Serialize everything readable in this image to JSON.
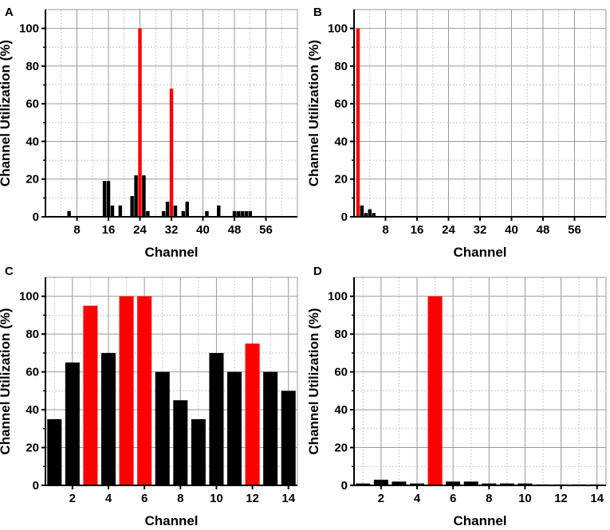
{
  "colors": {
    "normal_bar": "#000000",
    "highlight_bar": "#ff0000",
    "grid_major": "#999999",
    "grid_minor": "#c8c8c8",
    "frame": "#000000"
  },
  "chart_data": [
    {
      "panel": "A",
      "type": "bar",
      "xlabel": "Channel",
      "ylabel": "Channel Utilization (%)",
      "xlim": [
        0,
        64
      ],
      "ylim": [
        0,
        110
      ],
      "xticks": [
        8,
        16,
        24,
        32,
        40,
        48,
        56
      ],
      "yticks": [
        0,
        20,
        40,
        60,
        80,
        100
      ],
      "grid": true,
      "bar_width": 0.9,
      "bars": [
        {
          "x": 6,
          "y": 3
        },
        {
          "x": 15,
          "y": 19
        },
        {
          "x": 16,
          "y": 19
        },
        {
          "x": 17,
          "y": 6
        },
        {
          "x": 19,
          "y": 6
        },
        {
          "x": 22,
          "y": 11
        },
        {
          "x": 23,
          "y": 22
        },
        {
          "x": 24,
          "y": 100,
          "highlight": true
        },
        {
          "x": 25,
          "y": 22
        },
        {
          "x": 26,
          "y": 3
        },
        {
          "x": 30,
          "y": 3
        },
        {
          "x": 31,
          "y": 8
        },
        {
          "x": 32,
          "y": 68,
          "highlight": true
        },
        {
          "x": 33,
          "y": 6
        },
        {
          "x": 35,
          "y": 3
        },
        {
          "x": 36,
          "y": 8
        },
        {
          "x": 41,
          "y": 3
        },
        {
          "x": 44,
          "y": 6
        },
        {
          "x": 48,
          "y": 3
        },
        {
          "x": 49,
          "y": 3
        },
        {
          "x": 50,
          "y": 3
        },
        {
          "x": 51,
          "y": 3
        },
        {
          "x": 52,
          "y": 3
        }
      ]
    },
    {
      "panel": "B",
      "type": "bar",
      "xlabel": "Channel",
      "ylabel": "Channel Utilization (%)",
      "xlim": [
        0,
        64
      ],
      "ylim": [
        0,
        110
      ],
      "xticks": [
        8,
        16,
        24,
        32,
        40,
        48,
        56
      ],
      "yticks": [
        0,
        20,
        40,
        60,
        80,
        100
      ],
      "grid": true,
      "bar_width": 0.9,
      "bars": [
        {
          "x": 1,
          "y": 100,
          "highlight": true
        },
        {
          "x": 2,
          "y": 6
        },
        {
          "x": 3,
          "y": 2
        },
        {
          "x": 4,
          "y": 4
        },
        {
          "x": 5,
          "y": 2
        }
      ]
    },
    {
      "panel": "C",
      "type": "bar",
      "xlabel": "Channel",
      "ylabel": "Channel Utilization (%)",
      "xlim": [
        0.5,
        14.5
      ],
      "ylim": [
        0,
        110
      ],
      "xticks": [
        2,
        4,
        6,
        8,
        10,
        12,
        14
      ],
      "yticks": [
        0,
        20,
        40,
        60,
        80,
        100
      ],
      "grid": true,
      "bar_width": 0.8,
      "bars": [
        {
          "x": 1,
          "y": 35
        },
        {
          "x": 2,
          "y": 65
        },
        {
          "x": 3,
          "y": 95,
          "highlight": true
        },
        {
          "x": 4,
          "y": 70
        },
        {
          "x": 5,
          "y": 100,
          "highlight": true
        },
        {
          "x": 6,
          "y": 100,
          "highlight": true
        },
        {
          "x": 7,
          "y": 60
        },
        {
          "x": 8,
          "y": 45
        },
        {
          "x": 9,
          "y": 35
        },
        {
          "x": 10,
          "y": 70
        },
        {
          "x": 11,
          "y": 60
        },
        {
          "x": 12,
          "y": 75,
          "highlight": true
        },
        {
          "x": 13,
          "y": 60
        },
        {
          "x": 14,
          "y": 50
        }
      ]
    },
    {
      "panel": "D",
      "type": "bar",
      "xlabel": "Channel",
      "ylabel": "Channel Utilization (%)",
      "xlim": [
        0.5,
        14.5
      ],
      "ylim": [
        0,
        110
      ],
      "xticks": [
        2,
        4,
        6,
        8,
        10,
        12,
        14
      ],
      "yticks": [
        0,
        20,
        40,
        60,
        80,
        100
      ],
      "grid": true,
      "bar_width": 0.8,
      "bars": [
        {
          "x": 1,
          "y": 1
        },
        {
          "x": 2,
          "y": 3
        },
        {
          "x": 3,
          "y": 2
        },
        {
          "x": 4,
          "y": 1
        },
        {
          "x": 5,
          "y": 100,
          "highlight": true
        },
        {
          "x": 6,
          "y": 2
        },
        {
          "x": 7,
          "y": 2
        },
        {
          "x": 8,
          "y": 1
        },
        {
          "x": 9,
          "y": 1
        },
        {
          "x": 10,
          "y": 1
        },
        {
          "x": 11,
          "y": 0.5
        },
        {
          "x": 12,
          "y": 0.5
        },
        {
          "x": 13,
          "y": 0.5
        },
        {
          "x": 14,
          "y": 0.5
        }
      ]
    }
  ]
}
